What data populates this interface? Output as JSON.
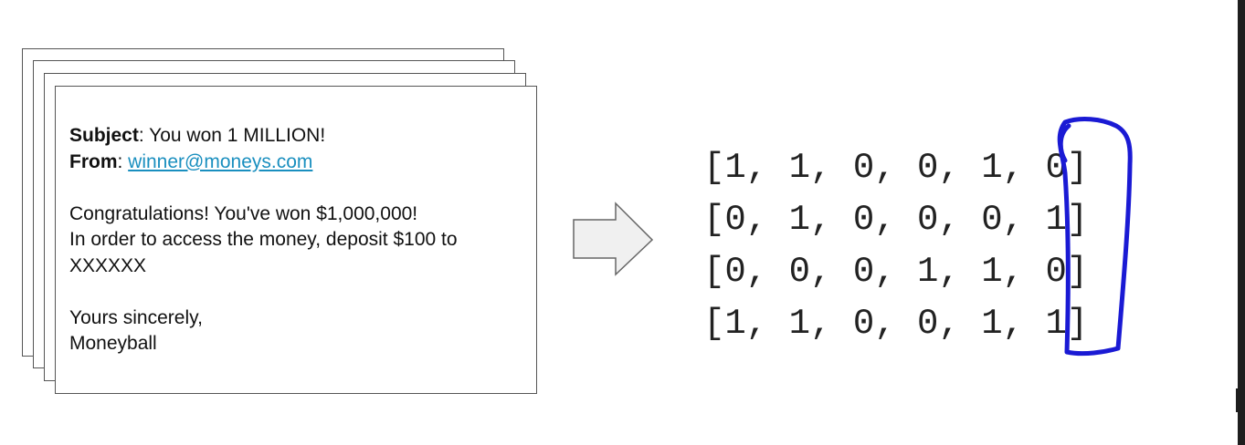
{
  "email": {
    "subject_label": "Subject",
    "subject_text": ": You won 1 MILLION!",
    "from_label": "From",
    "from_sep": ": ",
    "from_link": "winner@moneys.com",
    "line1": "Congratulations! You've won $1,000,000!",
    "line2": "In order to access the money, deposit $100 to",
    "line3": "XXXXXX",
    "closing": "Yours sincerely,",
    "signature": "Moneyball"
  },
  "matrix": {
    "rows": [
      "[1, 1, 0, 0, 1, 0]",
      "[0, 1, 0, 0, 0, 1]",
      "[0, 0, 0, 1, 1, 0]",
      "[1, 1, 0, 0, 1, 1]"
    ]
  },
  "colors": {
    "link": "#1a8fbf",
    "highlight": "#1a1ad4",
    "arrow_fill": "#f0f0f0",
    "arrow_stroke": "#666666"
  }
}
